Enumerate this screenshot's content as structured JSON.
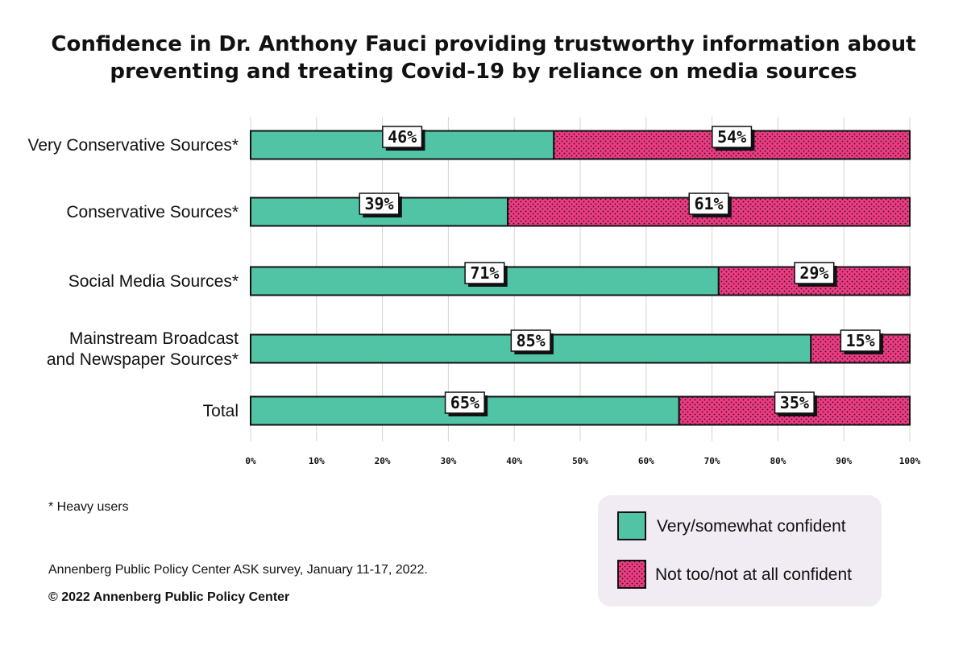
{
  "chart_data": {
    "type": "bar",
    "orientation": "horizontal",
    "stacked": true,
    "title": "Confidence in Dr. Anthony Fauci providing trustworthy information about preventing and treating Covid-19 by reliance on media sources",
    "title_lines": [
      "Confidence in Dr. Anthony Fauci providing trustworthy information about",
      "preventing and treating Covid-19 by reliance on media sources"
    ],
    "categories": [
      "Very Conservative Sources*",
      "Conservative Sources*",
      "Social Media Sources*",
      "Mainstream Broadcast and Newspaper Sources*",
      "Total"
    ],
    "category_lines": [
      [
        "Very Conservative Sources*"
      ],
      [
        "Conservative Sources*"
      ],
      [
        "Social Media Sources*"
      ],
      [
        "Mainstream Broadcast",
        "and Newspaper Sources*"
      ],
      [
        "Total"
      ]
    ],
    "series": [
      {
        "name": "Very/somewhat confident",
        "values": [
          46,
          39,
          71,
          85,
          65
        ],
        "color": "#52c4a6",
        "pattern": "solid"
      },
      {
        "name": "Not too/not at all confident",
        "values": [
          54,
          61,
          29,
          15,
          35
        ],
        "color": "#ee3a83",
        "pattern": "dots"
      }
    ],
    "value_suffix": "%",
    "xlim": [
      0,
      100
    ],
    "xticks": [
      0,
      10,
      20,
      30,
      40,
      50,
      60,
      70,
      80,
      90,
      100
    ],
    "xtick_labels": [
      "0%",
      "10%",
      "20%",
      "30%",
      "40%",
      "50%",
      "60%",
      "70%",
      "80%",
      "90%",
      "100%"
    ],
    "grid": true,
    "legend_position": "bottom-right"
  },
  "footnotes": {
    "heavy_users": "* Heavy users",
    "source": "Annenberg Public Policy Center ASK survey, January 11-17, 2022.",
    "copyright": "© 2022 Annenberg Public Policy Center"
  },
  "colors": {
    "confident": "#52c4a6",
    "not_confident": "#ee3a83",
    "legend_bg": "#f1ebf3",
    "grid": "#d4d4d4"
  }
}
